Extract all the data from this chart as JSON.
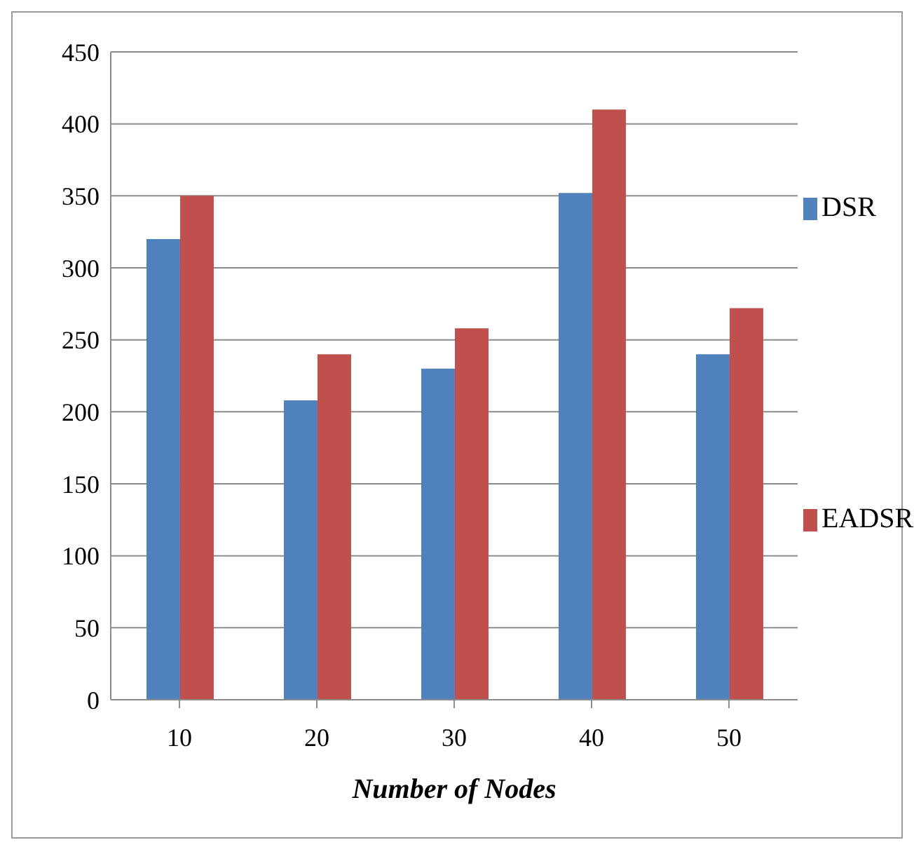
{
  "chart_data": {
    "type": "bar",
    "xlabel": "Number of Nodes",
    "categories": [
      "10",
      "20",
      "30",
      "40",
      "50"
    ],
    "series": [
      {
        "name": "DSR",
        "color": "#4f81bd",
        "values": [
          320,
          208,
          230,
          352,
          240
        ]
      },
      {
        "name": "EADSR",
        "color": "#c0504d",
        "values": [
          350,
          240,
          258,
          410,
          272
        ]
      }
    ],
    "ylim": [
      0,
      450
    ],
    "yticks": [
      0,
      50,
      100,
      150,
      200,
      250,
      300,
      350,
      400,
      450
    ],
    "grid": "y",
    "legend": "right"
  }
}
